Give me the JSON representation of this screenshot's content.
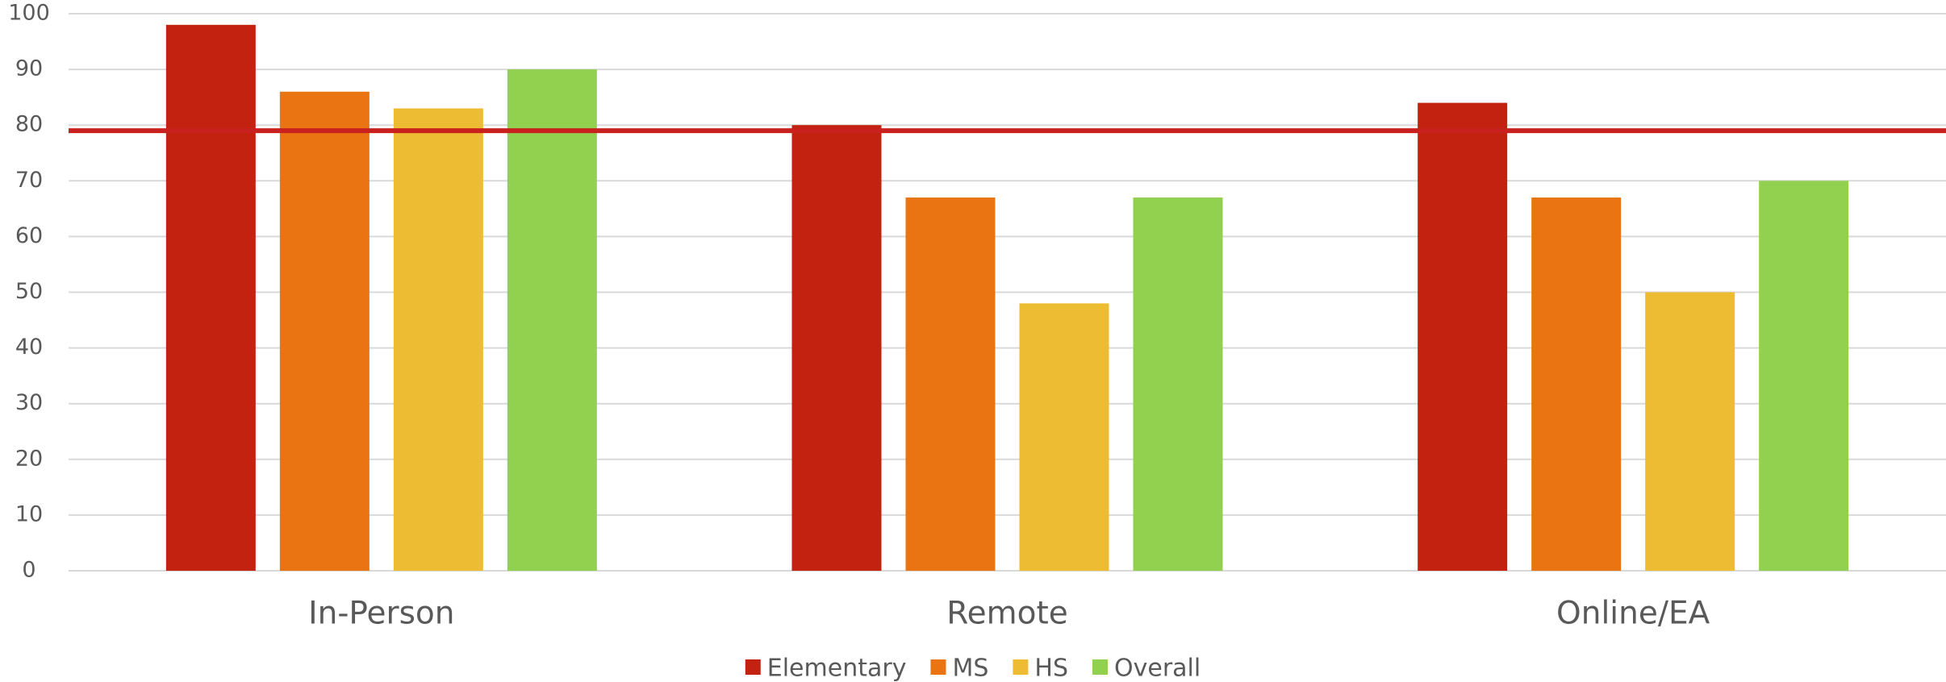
{
  "chart_data": {
    "type": "bar",
    "categories": [
      "In-Person",
      "Remote",
      "Online/EA"
    ],
    "series": [
      {
        "name": "Elementary",
        "color": "#c42210",
        "values": [
          98,
          80,
          84
        ]
      },
      {
        "name": "MS",
        "color": "#e97411",
        "values": [
          86,
          67,
          67
        ]
      },
      {
        "name": "HS",
        "color": "#edbc32",
        "values": [
          83,
          48,
          50
        ]
      },
      {
        "name": "Overall",
        "color": "#92d050",
        "values": [
          90,
          67,
          70
        ]
      }
    ],
    "reference_line": {
      "value": 79,
      "color": "#c9211e"
    },
    "ylim": [
      0,
      100
    ],
    "yticks": [
      0,
      10,
      20,
      30,
      40,
      50,
      60,
      70,
      80,
      90,
      100
    ],
    "grid": true,
    "legend": "bottom"
  }
}
